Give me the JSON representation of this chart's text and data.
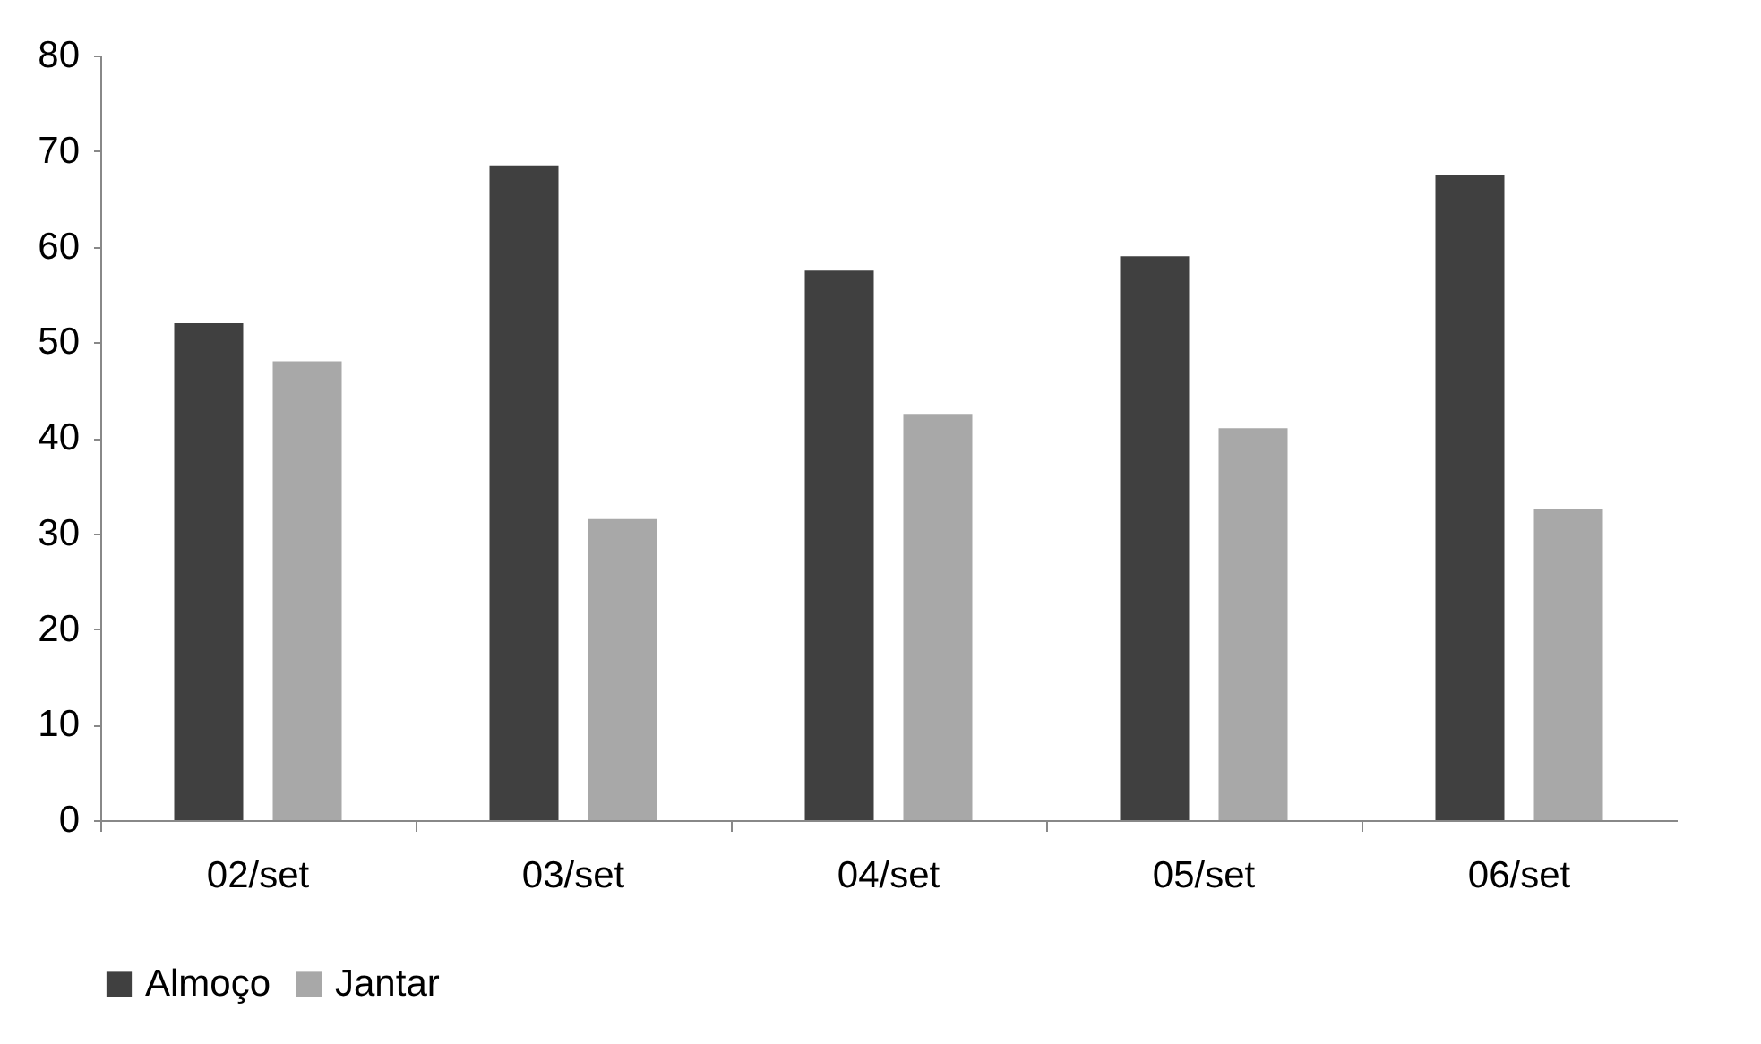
{
  "chart_data": {
    "type": "bar",
    "categories": [
      "02/set",
      "03/set",
      "04/set",
      "05/set",
      "06/set"
    ],
    "series": [
      {
        "name": "Almoço",
        "color": "#404040",
        "values": [
          52,
          68.5,
          57.5,
          59,
          67.5
        ]
      },
      {
        "name": "Jantar",
        "color": "#a8a8a8",
        "values": [
          48,
          31.5,
          42.5,
          41,
          32.5
        ]
      }
    ],
    "ylim": [
      0,
      80
    ],
    "yticks": [
      0,
      10,
      20,
      30,
      40,
      50,
      60,
      70,
      80
    ],
    "grid": false,
    "legend": "bottom"
  }
}
